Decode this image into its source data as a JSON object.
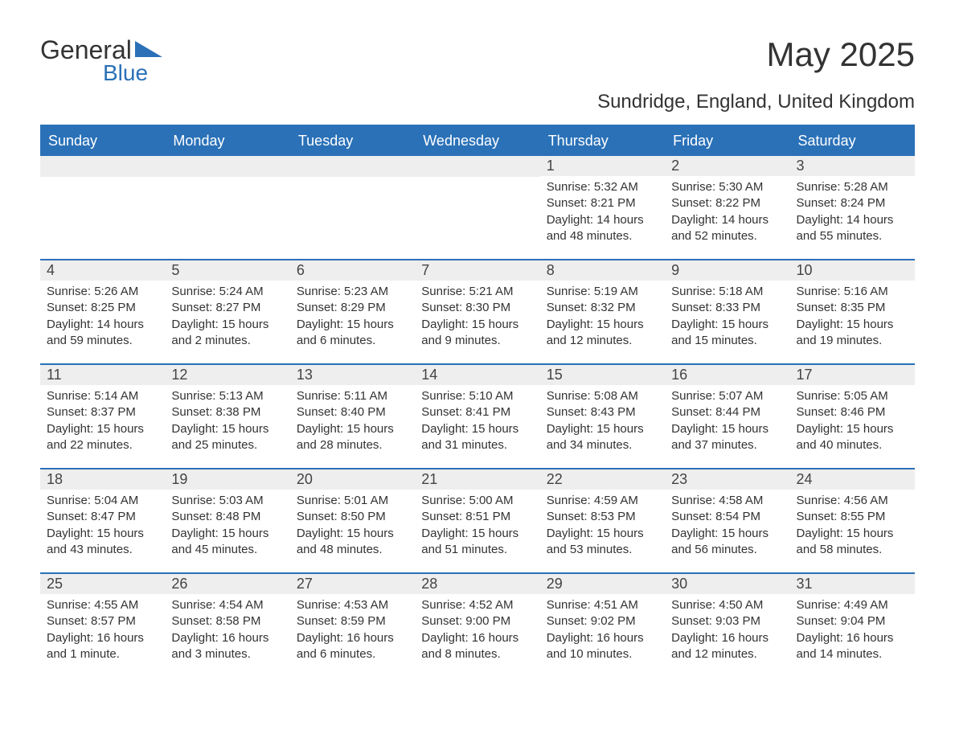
{
  "logo": {
    "main": "General",
    "sub": "Blue",
    "tri_color": "#2a71b8"
  },
  "title": "May 2025",
  "subtitle": "Sundridge, England, United Kingdom",
  "colors": {
    "header_bg": "#2a71b8",
    "header_text": "#ffffff",
    "daynum_bg": "#eeeeee",
    "border": "#2a71b8",
    "body_bg": "#ffffff",
    "text": "#333333"
  },
  "day_headers": [
    "Sunday",
    "Monday",
    "Tuesday",
    "Wednesday",
    "Thursday",
    "Friday",
    "Saturday"
  ],
  "weeks": [
    [
      {
        "day": "",
        "sunrise": "",
        "sunset": "",
        "daylight": ""
      },
      {
        "day": "",
        "sunrise": "",
        "sunset": "",
        "daylight": ""
      },
      {
        "day": "",
        "sunrise": "",
        "sunset": "",
        "daylight": ""
      },
      {
        "day": "",
        "sunrise": "",
        "sunset": "",
        "daylight": ""
      },
      {
        "day": "1",
        "sunrise": "Sunrise: 5:32 AM",
        "sunset": "Sunset: 8:21 PM",
        "daylight": "Daylight: 14 hours and 48 minutes."
      },
      {
        "day": "2",
        "sunrise": "Sunrise: 5:30 AM",
        "sunset": "Sunset: 8:22 PM",
        "daylight": "Daylight: 14 hours and 52 minutes."
      },
      {
        "day": "3",
        "sunrise": "Sunrise: 5:28 AM",
        "sunset": "Sunset: 8:24 PM",
        "daylight": "Daylight: 14 hours and 55 minutes."
      }
    ],
    [
      {
        "day": "4",
        "sunrise": "Sunrise: 5:26 AM",
        "sunset": "Sunset: 8:25 PM",
        "daylight": "Daylight: 14 hours and 59 minutes."
      },
      {
        "day": "5",
        "sunrise": "Sunrise: 5:24 AM",
        "sunset": "Sunset: 8:27 PM",
        "daylight": "Daylight: 15 hours and 2 minutes."
      },
      {
        "day": "6",
        "sunrise": "Sunrise: 5:23 AM",
        "sunset": "Sunset: 8:29 PM",
        "daylight": "Daylight: 15 hours and 6 minutes."
      },
      {
        "day": "7",
        "sunrise": "Sunrise: 5:21 AM",
        "sunset": "Sunset: 8:30 PM",
        "daylight": "Daylight: 15 hours and 9 minutes."
      },
      {
        "day": "8",
        "sunrise": "Sunrise: 5:19 AM",
        "sunset": "Sunset: 8:32 PM",
        "daylight": "Daylight: 15 hours and 12 minutes."
      },
      {
        "day": "9",
        "sunrise": "Sunrise: 5:18 AM",
        "sunset": "Sunset: 8:33 PM",
        "daylight": "Daylight: 15 hours and 15 minutes."
      },
      {
        "day": "10",
        "sunrise": "Sunrise: 5:16 AM",
        "sunset": "Sunset: 8:35 PM",
        "daylight": "Daylight: 15 hours and 19 minutes."
      }
    ],
    [
      {
        "day": "11",
        "sunrise": "Sunrise: 5:14 AM",
        "sunset": "Sunset: 8:37 PM",
        "daylight": "Daylight: 15 hours and 22 minutes."
      },
      {
        "day": "12",
        "sunrise": "Sunrise: 5:13 AM",
        "sunset": "Sunset: 8:38 PM",
        "daylight": "Daylight: 15 hours and 25 minutes."
      },
      {
        "day": "13",
        "sunrise": "Sunrise: 5:11 AM",
        "sunset": "Sunset: 8:40 PM",
        "daylight": "Daylight: 15 hours and 28 minutes."
      },
      {
        "day": "14",
        "sunrise": "Sunrise: 5:10 AM",
        "sunset": "Sunset: 8:41 PM",
        "daylight": "Daylight: 15 hours and 31 minutes."
      },
      {
        "day": "15",
        "sunrise": "Sunrise: 5:08 AM",
        "sunset": "Sunset: 8:43 PM",
        "daylight": "Daylight: 15 hours and 34 minutes."
      },
      {
        "day": "16",
        "sunrise": "Sunrise: 5:07 AM",
        "sunset": "Sunset: 8:44 PM",
        "daylight": "Daylight: 15 hours and 37 minutes."
      },
      {
        "day": "17",
        "sunrise": "Sunrise: 5:05 AM",
        "sunset": "Sunset: 8:46 PM",
        "daylight": "Daylight: 15 hours and 40 minutes."
      }
    ],
    [
      {
        "day": "18",
        "sunrise": "Sunrise: 5:04 AM",
        "sunset": "Sunset: 8:47 PM",
        "daylight": "Daylight: 15 hours and 43 minutes."
      },
      {
        "day": "19",
        "sunrise": "Sunrise: 5:03 AM",
        "sunset": "Sunset: 8:48 PM",
        "daylight": "Daylight: 15 hours and 45 minutes."
      },
      {
        "day": "20",
        "sunrise": "Sunrise: 5:01 AM",
        "sunset": "Sunset: 8:50 PM",
        "daylight": "Daylight: 15 hours and 48 minutes."
      },
      {
        "day": "21",
        "sunrise": "Sunrise: 5:00 AM",
        "sunset": "Sunset: 8:51 PM",
        "daylight": "Daylight: 15 hours and 51 minutes."
      },
      {
        "day": "22",
        "sunrise": "Sunrise: 4:59 AM",
        "sunset": "Sunset: 8:53 PM",
        "daylight": "Daylight: 15 hours and 53 minutes."
      },
      {
        "day": "23",
        "sunrise": "Sunrise: 4:58 AM",
        "sunset": "Sunset: 8:54 PM",
        "daylight": "Daylight: 15 hours and 56 minutes."
      },
      {
        "day": "24",
        "sunrise": "Sunrise: 4:56 AM",
        "sunset": "Sunset: 8:55 PM",
        "daylight": "Daylight: 15 hours and 58 minutes."
      }
    ],
    [
      {
        "day": "25",
        "sunrise": "Sunrise: 4:55 AM",
        "sunset": "Sunset: 8:57 PM",
        "daylight": "Daylight: 16 hours and 1 minute."
      },
      {
        "day": "26",
        "sunrise": "Sunrise: 4:54 AM",
        "sunset": "Sunset: 8:58 PM",
        "daylight": "Daylight: 16 hours and 3 minutes."
      },
      {
        "day": "27",
        "sunrise": "Sunrise: 4:53 AM",
        "sunset": "Sunset: 8:59 PM",
        "daylight": "Daylight: 16 hours and 6 minutes."
      },
      {
        "day": "28",
        "sunrise": "Sunrise: 4:52 AM",
        "sunset": "Sunset: 9:00 PM",
        "daylight": "Daylight: 16 hours and 8 minutes."
      },
      {
        "day": "29",
        "sunrise": "Sunrise: 4:51 AM",
        "sunset": "Sunset: 9:02 PM",
        "daylight": "Daylight: 16 hours and 10 minutes."
      },
      {
        "day": "30",
        "sunrise": "Sunrise: 4:50 AM",
        "sunset": "Sunset: 9:03 PM",
        "daylight": "Daylight: 16 hours and 12 minutes."
      },
      {
        "day": "31",
        "sunrise": "Sunrise: 4:49 AM",
        "sunset": "Sunset: 9:04 PM",
        "daylight": "Daylight: 16 hours and 14 minutes."
      }
    ]
  ]
}
